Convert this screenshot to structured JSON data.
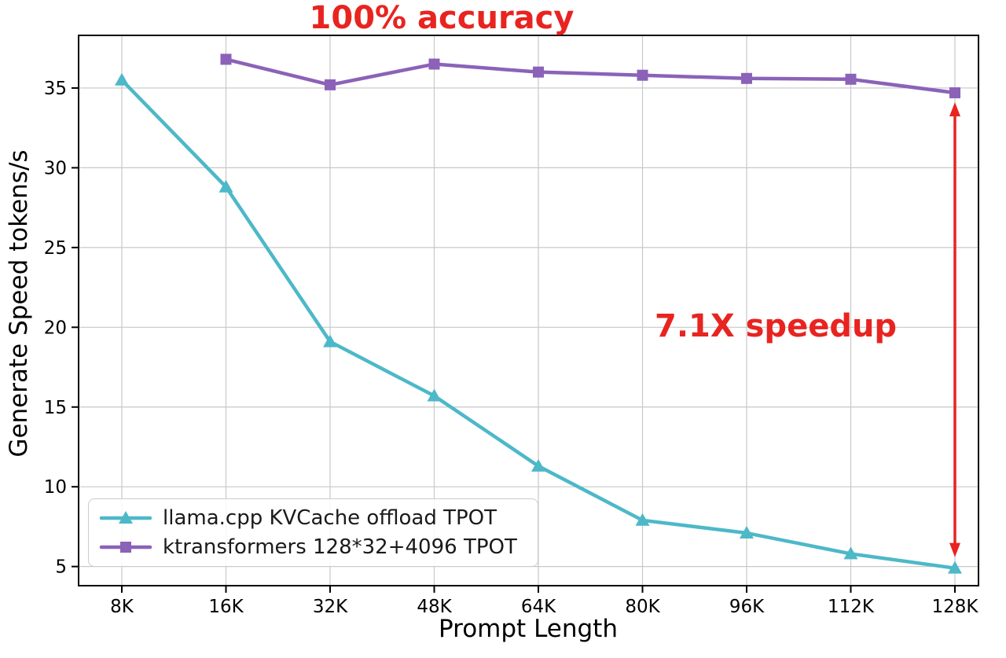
{
  "chart_data": {
    "type": "line",
    "title": "",
    "xlabel": "Prompt Length",
    "ylabel": "Generate Speed tokens/s",
    "categories": [
      "8K",
      "16K",
      "32K",
      "48K",
      "64K",
      "80K",
      "96K",
      "112K",
      "128K"
    ],
    "yticks": [
      5,
      10,
      15,
      20,
      25,
      30,
      35
    ],
    "ylim": [
      3.8,
      38.3
    ],
    "grid": true,
    "legend_position": "lower left",
    "series": [
      {
        "name": "llama.cpp KVCache offload TPOT",
        "marker": "triangle",
        "color": "#4db8c8",
        "values": [
          35.5,
          28.8,
          19.1,
          15.7,
          11.3,
          7.9,
          7.1,
          5.8,
          4.9
        ]
      },
      {
        "name": "ktransformers 128*32+4096 TPOT",
        "marker": "square",
        "color": "#8b62b8",
        "values": [
          null,
          36.8,
          35.2,
          36.5,
          36.0,
          35.8,
          35.6,
          35.55,
          34.7
        ]
      }
    ],
    "annotations": [
      {
        "text": "100% accuracy",
        "color": "#e82420",
        "position": "top-center"
      },
      {
        "text": "7.1X speedup",
        "color": "#e82420",
        "position": "right-middle"
      }
    ],
    "speedup_arrow": {
      "at_category": "128K",
      "from_series": "ktransformers 128*32+4096 TPOT",
      "to_series": "llama.cpp KVCache offload TPOT"
    }
  },
  "colors": {
    "grid": "#c8c8c8",
    "axis": "#000000"
  }
}
